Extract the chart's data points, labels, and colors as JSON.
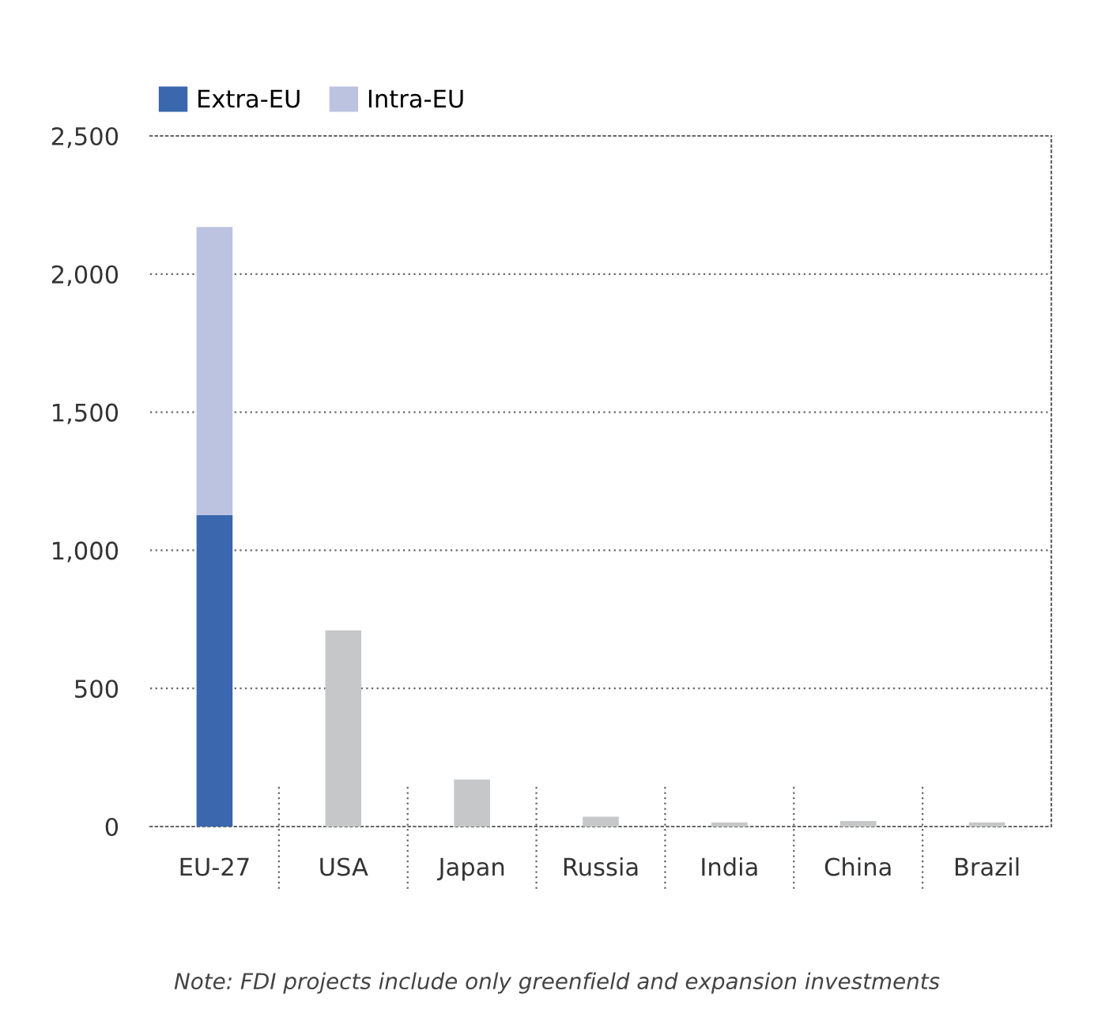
{
  "chart_data": {
    "type": "bar",
    "stacked": true,
    "categories": [
      "EU-27",
      "USA",
      "Japan",
      "Russia",
      "India",
      "China",
      "Brazil"
    ],
    "series": [
      {
        "name": "Extra-EU",
        "color": "#3a67ad",
        "values": [
          1127,
          null,
          null,
          null,
          null,
          null,
          null
        ]
      },
      {
        "name": "Intra-EU",
        "color": "#bcc3e0",
        "values": [
          1043,
          null,
          null,
          null,
          null,
          null,
          null
        ]
      },
      {
        "color": "#c6c7c8",
        "values": [
          null,
          710,
          170,
          36,
          15,
          20,
          15
        ]
      }
    ],
    "ylim": [
      0,
      2500
    ],
    "yticks": [
      0,
      500,
      {
        "value": 1000,
        "label": "1,000"
      },
      {
        "value": 1500,
        "label": "1,500"
      },
      {
        "value": 2000,
        "label": "2,000"
      },
      {
        "value": 2500,
        "label": "2,500"
      }
    ],
    "grid": "y",
    "legend": "top left",
    "annotations": [
      "Note: FDI projects include only greenfield and expansion investments"
    ]
  }
}
